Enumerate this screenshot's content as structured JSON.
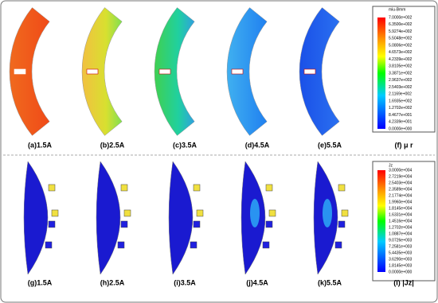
{
  "panels_top": [
    "(a)1.5A",
    "(b)2.5A",
    "(c)3.5A",
    "(d)4.5A",
    "(e)5.5A"
  ],
  "colorbar_top": {
    "title": "miu-Bmm",
    "label": "(f) μ r",
    "ticks": [
      "7.0000e+002",
      "6.3500e+002",
      "5.9274e+002",
      "5.5048e+002",
      "5.0806e+002",
      "4.6573e+002",
      "4.2339e+002",
      "3.8105e+002",
      "3.3871e+002",
      "2.9637e+002",
      "2.5403e+002",
      "2.1169e+002",
      "1.6935e+002",
      "1.2702e+002",
      "8.4677e+001",
      "4.2339e+001",
      "0.0000e+000"
    ]
  },
  "panels_bottom": [
    "(g)1.5A",
    "(h)2.5A",
    "(i)3.5A",
    "(j)4.5A",
    "(k)5.5A"
  ],
  "colorbar_bottom": {
    "title": "Jz",
    "label": "(l) |Jz|",
    "ticks": [
      "3.0000e+004",
      "2.7219e+004",
      "2.5403e+004",
      "2.3589e+004",
      "2.1774e+004",
      "1.9960e+004",
      "1.8145e+004",
      "1.6331e+004",
      "1.4516e+004",
      "1.2702e+004",
      "1.0887e+004",
      "9.0726e+003",
      "7.2581e+003",
      "5.4435e+003",
      "3.6290e+003",
      "1.8145e+003",
      "0.0000e+000"
    ]
  }
}
